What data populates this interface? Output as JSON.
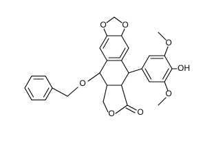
{
  "atom_labels": [
    "O",
    "O",
    "O",
    "O",
    "OH",
    "O",
    "O",
    "O"
  ]
}
